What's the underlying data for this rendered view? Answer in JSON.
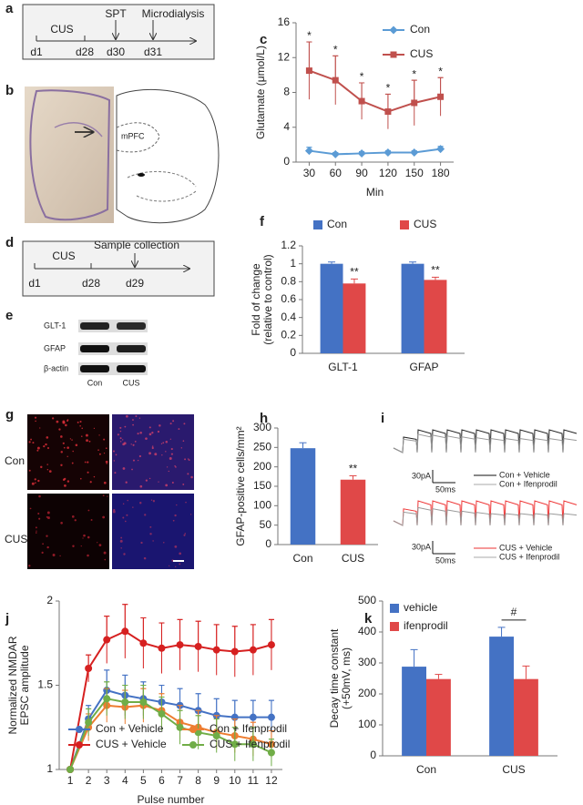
{
  "panels": {
    "labels": [
      "a",
      "b",
      "c",
      "d",
      "e",
      "f",
      "g",
      "h",
      "i",
      "j",
      "k"
    ],
    "a": {
      "events": [
        "CUS",
        "SPT",
        "Microdialysis"
      ],
      "days": [
        "d1",
        "d28",
        "d30",
        "d31"
      ]
    },
    "b": {
      "region": "mPFC"
    },
    "d": {
      "events": [
        "CUS",
        "Sample collection"
      ],
      "days": [
        "d1",
        "d28",
        "d29"
      ]
    },
    "e": {
      "proteins": [
        "GLT-1",
        "GFAP",
        "β-actin"
      ],
      "groups": [
        "Con",
        "CUS"
      ]
    },
    "g": {
      "groups": [
        "Con",
        "CUS"
      ]
    },
    "i": {
      "scale_current": "30pA",
      "scale_time": "50ms",
      "legend_top": [
        "Con + Vehicle",
        "Con + Ifenprodil"
      ],
      "legend_bottom": [
        "CUS + Vehicle",
        "CUS + Ifenprodil"
      ]
    }
  },
  "chart_data": [
    {
      "type": "line",
      "x": [
        30,
        60,
        90,
        120,
        150,
        180
      ],
      "xlim": [
        15,
        195
      ],
      "xticks": [
        30,
        60,
        90,
        120,
        150,
        180
      ],
      "ylim": [
        0,
        16
      ],
      "yticks": [
        0,
        4,
        8,
        12,
        16
      ],
      "x_label": "Min",
      "y_label": [
        "Glutamate (μmol/L)"
      ],
      "legend": "upper right",
      "series": [
        {
          "name": "Con",
          "color": "#5b9bd5",
          "marker": "diamond",
          "values": [
            1.3,
            0.9,
            1.0,
            1.1,
            1.1,
            1.5
          ],
          "errors": [
            0.4,
            0.2,
            0.2,
            0.2,
            0.2,
            0.3
          ]
        },
        {
          "name": "CUS",
          "color": "#c0504d",
          "marker": "square",
          "values": [
            10.5,
            9.4,
            7.0,
            5.8,
            6.8,
            7.5
          ],
          "errors": [
            3.3,
            2.8,
            2.1,
            2.0,
            2.6,
            2.2
          ],
          "significance": [
            "*",
            "*",
            "*",
            "*",
            "*",
            "*"
          ]
        }
      ]
    },
    {
      "type": "bar",
      "categories": [
        "GLT-1",
        "GFAP"
      ],
      "ylim": [
        0,
        1.2
      ],
      "yticks": [
        0,
        0.2,
        0.4,
        0.6,
        0.8,
        1,
        1.2
      ],
      "y_label": [
        "Fold of change",
        "(relative  to control)"
      ],
      "legend": "top",
      "series": [
        {
          "name": "Con",
          "color": "#4472c4",
          "values": [
            1.0,
            1.0
          ],
          "errors": [
            0.02,
            0.02
          ]
        },
        {
          "name": "CUS",
          "color": "#e04848",
          "values": [
            0.78,
            0.82
          ],
          "errors": [
            0.05,
            0.03
          ],
          "significance": [
            "**",
            "**"
          ]
        }
      ]
    },
    {
      "type": "bar",
      "categories": [
        "Con",
        "CUS"
      ],
      "ylim": [
        0,
        300
      ],
      "yticks": [
        0,
        50,
        100,
        150,
        200,
        250,
        300
      ],
      "y_label": [
        "GFAP-positive  cells/mm²"
      ],
      "series": [
        {
          "colors": [
            "#4472c4",
            "#e04848"
          ],
          "values": [
            248,
            167
          ],
          "errors": [
            14,
            10
          ],
          "significance": [
            null,
            "**"
          ]
        }
      ]
    },
    {
      "type": "line",
      "x": [
        1,
        2,
        3,
        4,
        5,
        6,
        7,
        8,
        9,
        10,
        11,
        12
      ],
      "xlim": [
        0.4,
        12.6
      ],
      "xticks": [
        1,
        2,
        3,
        4,
        5,
        6,
        7,
        8,
        9,
        10,
        11,
        12
      ],
      "ylim": [
        1,
        2
      ],
      "yticks": [
        1,
        1.5,
        2
      ],
      "x_label": "Pulse number",
      "y_label": [
        "Normalized NMDAR",
        "EPSC amplitude"
      ],
      "legend": "lower center",
      "series": [
        {
          "name": "Con + Vehicle",
          "color": "#4472c4",
          "marker": "circle",
          "values": [
            1,
            1.3,
            1.47,
            1.44,
            1.42,
            1.4,
            1.38,
            1.35,
            1.32,
            1.31,
            1.31,
            1.31
          ],
          "errors": [
            0,
            0.08,
            0.12,
            0.12,
            0.1,
            0.1,
            0.1,
            0.1,
            0.1,
            0.1,
            0.1,
            0.1
          ]
        },
        {
          "name": "Con + Ifenprodil",
          "color": "#ed7d31",
          "marker": "circle",
          "values": [
            1,
            1.25,
            1.38,
            1.37,
            1.38,
            1.35,
            1.28,
            1.25,
            1.22,
            1.2,
            1.18,
            1.15
          ],
          "errors": [
            0,
            0.08,
            0.1,
            0.1,
            0.1,
            0.1,
            0.1,
            0.1,
            0.1,
            0.1,
            0.1,
            0.08
          ]
        },
        {
          "name": "CUS + Vehicle",
          "color": "#d62020",
          "marker": "circle",
          "values": [
            1,
            1.6,
            1.77,
            1.82,
            1.75,
            1.72,
            1.74,
            1.73,
            1.71,
            1.7,
            1.71,
            1.74
          ],
          "errors": [
            0,
            0.08,
            0.14,
            0.16,
            0.15,
            0.15,
            0.15,
            0.15,
            0.15,
            0.15,
            0.15,
            0.15
          ]
        },
        {
          "name": "CUS + Ifenprodil",
          "color": "#70ad47",
          "marker": "circle",
          "values": [
            1,
            1.28,
            1.42,
            1.4,
            1.4,
            1.33,
            1.25,
            1.22,
            1.2,
            1.15,
            1.15,
            1.1
          ],
          "errors": [
            0,
            0.08,
            0.1,
            0.1,
            0.1,
            0.1,
            0.1,
            0.1,
            0.1,
            0.1,
            0.1,
            0.08
          ]
        }
      ]
    },
    {
      "type": "bar",
      "categories": [
        "Con",
        "CUS"
      ],
      "ylim": [
        0,
        500
      ],
      "yticks": [
        0,
        100,
        200,
        300,
        400,
        500
      ],
      "y_label": [
        "Decay time constant",
        "(+50mV, ms)"
      ],
      "legend": "upper left",
      "annotation": "#",
      "series": [
        {
          "name": "vehicle",
          "color": "#4472c4",
          "values": [
            288,
            385
          ],
          "errors": [
            55,
            30
          ]
        },
        {
          "name": "ifenprodil",
          "color": "#e04848",
          "values": [
            248,
            248
          ],
          "errors": [
            15,
            42
          ]
        }
      ]
    }
  ]
}
